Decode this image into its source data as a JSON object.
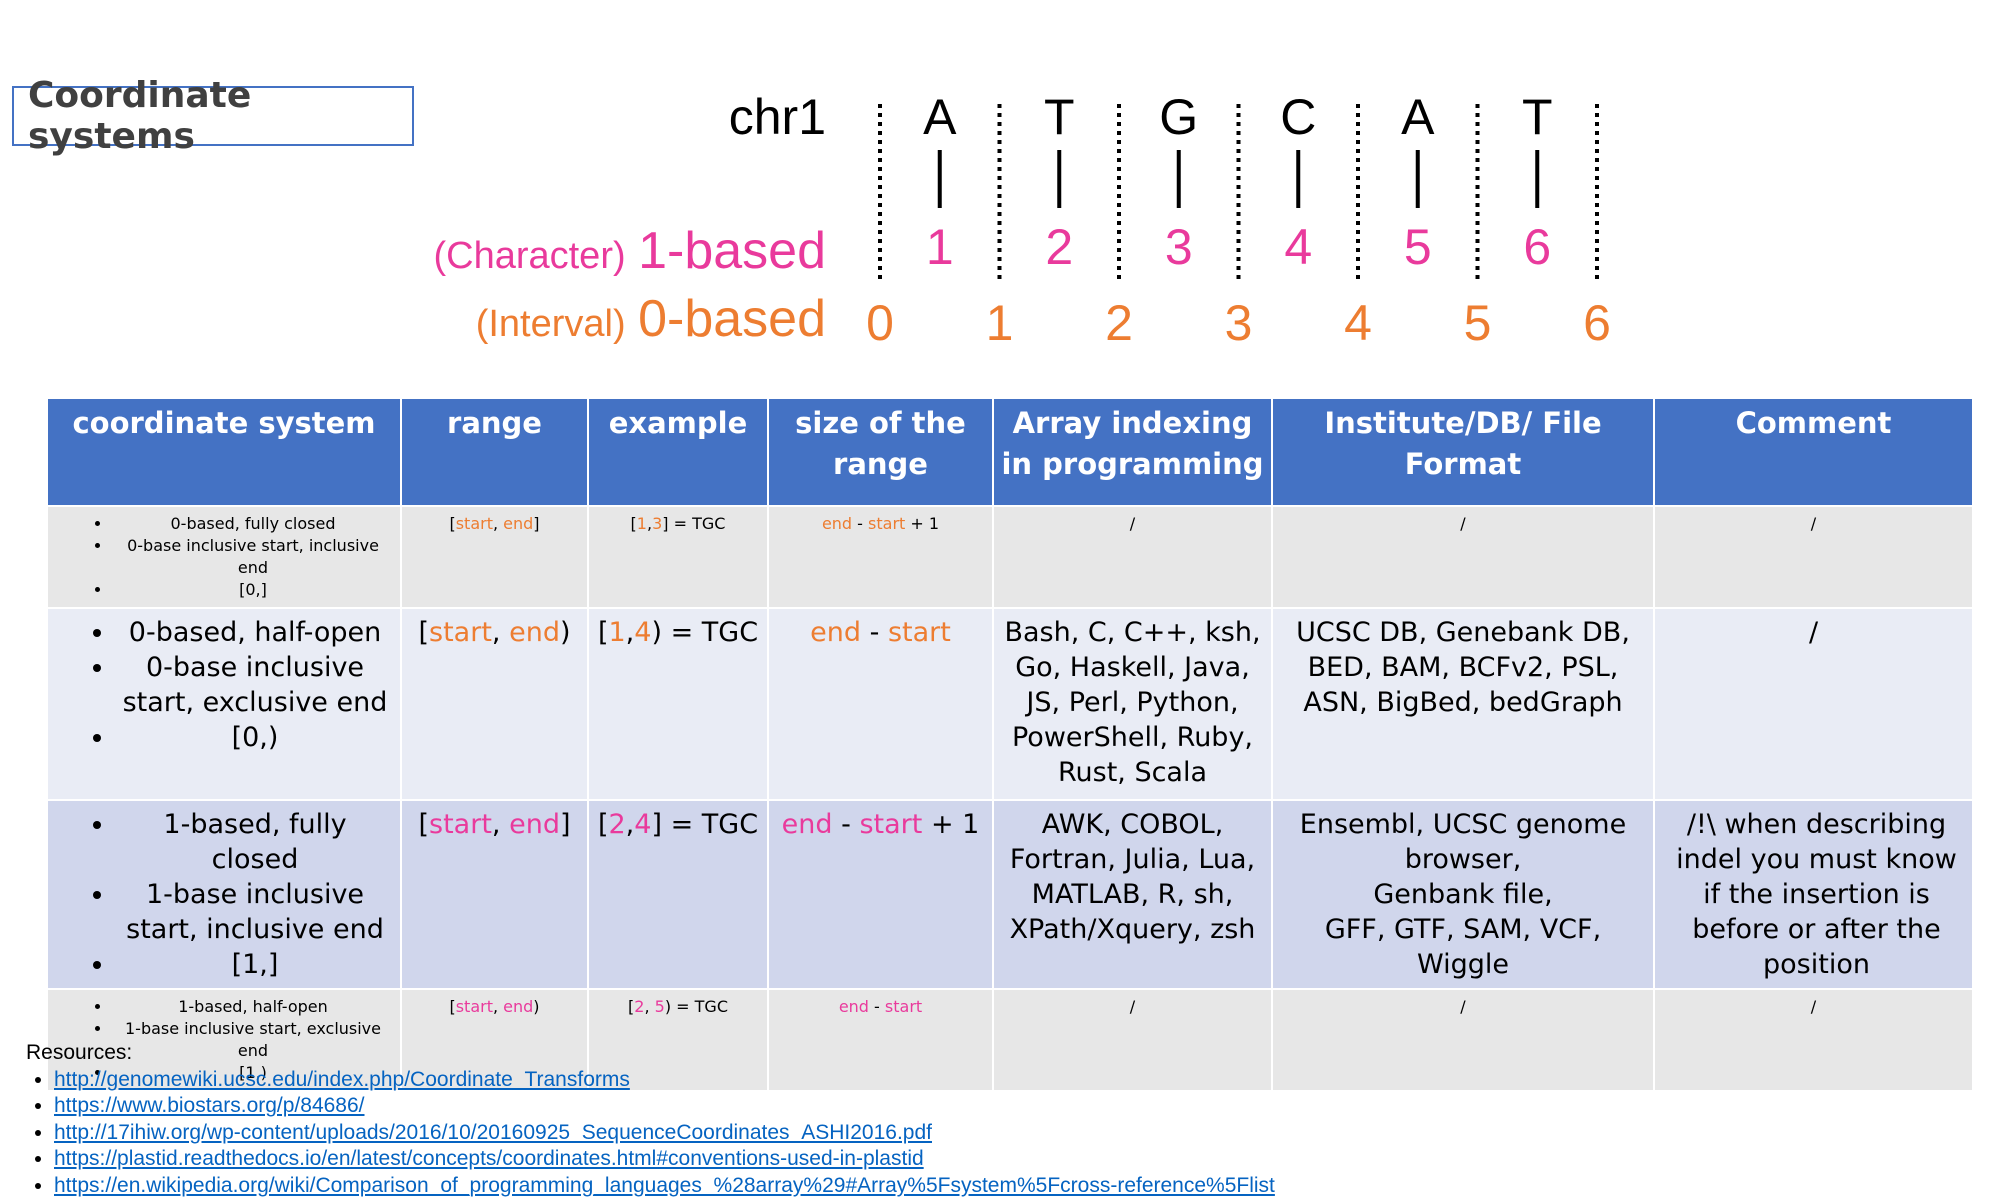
{
  "title": "Coordinate systems",
  "diagram": {
    "chrom_label": "chr1",
    "bases": [
      "A",
      "T",
      "G",
      "C",
      "A",
      "T"
    ],
    "one_based": {
      "prefix": "(Character)",
      "label": "1-based",
      "values": [
        "1",
        "2",
        "3",
        "4",
        "5",
        "6"
      ]
    },
    "zero_based": {
      "prefix": "(Interval)",
      "label": "0-based",
      "values": [
        "0",
        "1",
        "2",
        "3",
        "4",
        "5",
        "6"
      ]
    },
    "colors": {
      "orange": "#ed7d31",
      "pink": "#e93a9c"
    }
  },
  "table": {
    "headers": [
      "coordinate system",
      "range",
      "example",
      "size of the range",
      "Array indexing in programming",
      "Institute/DB/ File Format",
      "Comment"
    ],
    "rows": [
      {
        "bullets": [
          "0-based, fully closed",
          "0-base inclusive start, inclusive end",
          "[0,]"
        ],
        "range": {
          "open": "[",
          "start": "start",
          "sep": ", ",
          "end": "end",
          "close": "]"
        },
        "example": {
          "open": "[",
          "a": "1",
          "sep": ",",
          "b": "3",
          "close": "]",
          "rest": " = TGC"
        },
        "size": {
          "end": "end",
          "minus": " - ",
          "start": "start",
          "plus": " + 1"
        },
        "languages": "/",
        "formats": "/",
        "comment": "/"
      },
      {
        "bullets": [
          "0-based, half-open",
          "0-base inclusive start, exclusive end",
          "[0,)"
        ],
        "range": {
          "open": "[",
          "start": "start",
          "sep": ", ",
          "end": "end",
          "close": ")"
        },
        "example": {
          "open": "[",
          "a": "1",
          "sep": ",",
          "b": "4",
          "close": ")",
          "rest": " = TGC"
        },
        "size": {
          "end": "end",
          "minus": " - ",
          "start": "start",
          "plus": ""
        },
        "languages": "Bash, C, C++, ksh, Go, Haskell, Java, JS, Perl, Python, PowerShell, Ruby, Rust, Scala",
        "formats": "UCSC DB, Genebank DB, BED, BAM, BCFv2, PSL, ASN, BigBed, bedGraph",
        "comment": "/"
      },
      {
        "bullets": [
          "1-based, fully closed",
          "1-base inclusive start, inclusive end",
          "[1,]"
        ],
        "range": {
          "open": "[",
          "start": "start",
          "sep": ", ",
          "end": "end",
          "close": "]"
        },
        "example": {
          "open": "[",
          "a": "2",
          "sep": ",",
          "b": "4",
          "close": "]",
          "rest": " = TGC"
        },
        "size": {
          "end": "end",
          "minus": " - ",
          "start": "start",
          "plus": " + 1"
        },
        "languages": "AWK, COBOL, Fortran, Julia, Lua, MATLAB, R, sh, XPath/Xquery, zsh",
        "formats_lines": [
          "Ensembl, UCSC genome browser,",
          "Genbank file,",
          "GFF, GTF, SAM, VCF, Wiggle"
        ],
        "comment": "/!\\ when describing indel you must know if the insertion is before or after the position"
      },
      {
        "bullets": [
          "1-based, half-open",
          "1-base inclusive start, exclusive end",
          "[1,)"
        ],
        "range": {
          "open": "[",
          "start": "start",
          "sep": ", ",
          "end": "end",
          "close": ")"
        },
        "example": {
          "open": "[",
          "a": "2",
          "sep": ", ",
          "b": "5",
          "close": ")",
          "rest": " = TGC"
        },
        "size": {
          "end": "end",
          "minus": " - ",
          "start": "start",
          "plus": ""
        },
        "languages": "/",
        "formats": "/",
        "comment": "/"
      }
    ]
  },
  "resources": {
    "heading": "Resources:",
    "links": [
      "http://genomewiki.ucsc.edu/index.php/Coordinate_Transforms",
      "https://www.biostars.org/p/84686/",
      "http://17ihiw.org/wp-content/uploads/2016/10/20160925_SequenceCoordinates_ASHI2016.pdf",
      "https://plastid.readthedocs.io/en/latest/concepts/coordinates.html#conventions-used-in-plastid",
      "https://en.wikipedia.org/wiki/Comparison_of_programming_languages_%28array%29#Array%5Fsystem%5Fcross-reference%5Flist"
    ]
  }
}
